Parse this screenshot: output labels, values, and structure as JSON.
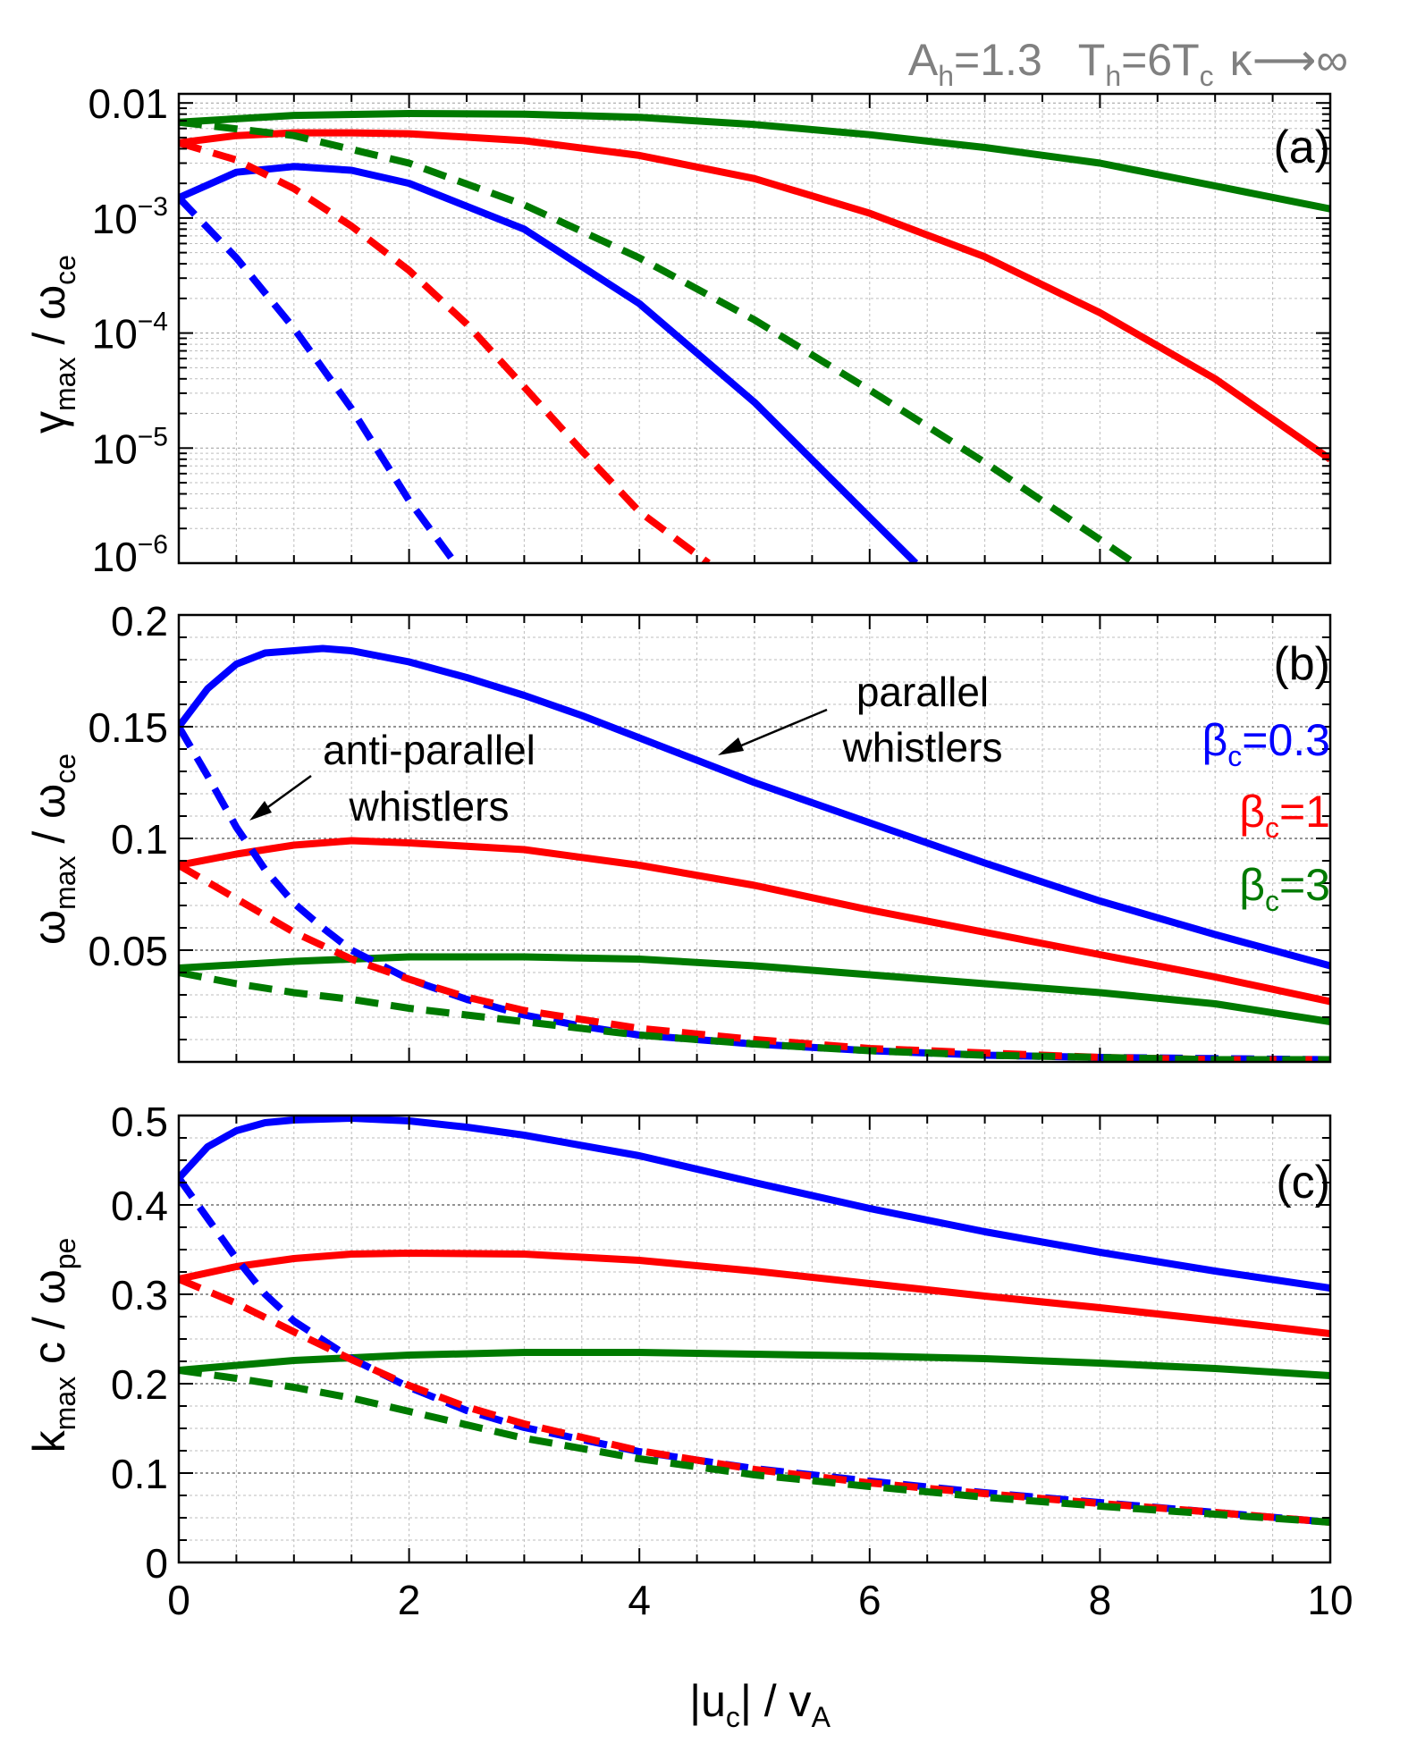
{
  "header": {
    "params": "A_h=1.3    T_h=6T_c  κ→∞",
    "ah": "A",
    "ah_sub": "h",
    "ah_val": "=1.3",
    "th": "T",
    "th_sub": "h",
    "th_mid": "=6T",
    "th_sub2": "c",
    "kappa": "κ⟶∞"
  },
  "colors": {
    "b03": "#0000ff",
    "b1": "#ff0000",
    "b3": "#007a00",
    "frame": "#000000",
    "grid": "#bdbdbd",
    "header": "#808080"
  },
  "chart_data": [
    {
      "panel": "(a)",
      "type": "line",
      "yscale": "log",
      "ylabel_main": "γ",
      "ylabel_sub": "max",
      "ylabel_rest": " / ω",
      "ylabel_sub2": "ce",
      "xlim": [
        0,
        10
      ],
      "ylim": [
        1e-06,
        0.012
      ],
      "yticks": [
        {
          "value": 0.01,
          "mantissa": "0.01",
          "exp": ""
        },
        {
          "value": 0.001,
          "mantissa": "10",
          "exp": "−3"
        },
        {
          "value": 0.0001,
          "mantissa": "10",
          "exp": "−4"
        },
        {
          "value": 1e-05,
          "mantissa": "10",
          "exp": "−5"
        },
        {
          "value": 1e-06,
          "mantissa": "10",
          "exp": "−6"
        }
      ],
      "series": [
        {
          "name": "β_c=0.3 parallel",
          "beta": "0.3",
          "style": "solid",
          "x": [
            0,
            0.5,
            1,
            1.5,
            2,
            3,
            4,
            5,
            6,
            6.4
          ],
          "y": [
            0.0015,
            0.0025,
            0.0028,
            0.0026,
            0.002,
            0.0008,
            0.00018,
            2.5e-05,
            2.5e-06,
            1e-06
          ]
        },
        {
          "name": "β_c=1 parallel",
          "beta": "1",
          "style": "solid",
          "x": [
            0,
            0.5,
            1,
            1.5,
            2,
            3,
            4,
            5,
            6,
            7,
            8,
            9,
            10
          ],
          "y": [
            0.0045,
            0.0052,
            0.0055,
            0.0055,
            0.0054,
            0.0047,
            0.0035,
            0.0022,
            0.0011,
            0.00046,
            0.00015,
            4e-05,
            8e-06
          ]
        },
        {
          "name": "β_c=3 parallel",
          "beta": "3",
          "style": "solid",
          "x": [
            0,
            1,
            2,
            3,
            4,
            5,
            6,
            7,
            8,
            9,
            10
          ],
          "y": [
            0.0068,
            0.0078,
            0.0081,
            0.008,
            0.0075,
            0.0065,
            0.0053,
            0.0041,
            0.003,
            0.0019,
            0.0012
          ]
        },
        {
          "name": "β_c=0.3 anti-parallel",
          "beta": "0.3",
          "style": "dashed",
          "x": [
            0,
            0.5,
            1,
            1.5,
            2,
            2.4
          ],
          "y": [
            0.0015,
            0.00045,
            0.00011,
            2.2e-05,
            3.5e-06,
            1e-06
          ]
        },
        {
          "name": "β_c=1 anti-parallel",
          "beta": "1",
          "style": "dashed",
          "x": [
            0,
            0.5,
            1,
            1.5,
            2,
            2.5,
            3,
            3.5,
            4,
            4.6
          ],
          "y": [
            0.0045,
            0.0032,
            0.0018,
            0.00085,
            0.00035,
            0.00012,
            3.4e-05,
            9.5e-06,
            2.8e-06,
            1e-06
          ]
        },
        {
          "name": "β_c=3 anti-parallel",
          "beta": "3",
          "style": "dashed",
          "x": [
            0,
            1,
            2,
            3,
            4,
            5,
            6,
            7,
            8,
            8.3
          ],
          "y": [
            0.0068,
            0.0052,
            0.003,
            0.0013,
            0.00045,
            0.00013,
            3.2e-05,
            7.5e-06,
            1.6e-06,
            1e-06
          ]
        }
      ]
    },
    {
      "panel": "(b)",
      "type": "line",
      "yscale": "linear",
      "ylabel_main": "ω",
      "ylabel_sub": "max",
      "ylabel_rest": " / ω",
      "ylabel_sub2": "ce",
      "xlim": [
        0,
        10
      ],
      "ylim": [
        0,
        0.2
      ],
      "yticks": [
        {
          "value": 0.2,
          "label": "0.2"
        },
        {
          "value": 0.15,
          "label": "0.15"
        },
        {
          "value": 0.1,
          "label": "0.1"
        },
        {
          "value": 0.05,
          "label": "0.05"
        }
      ],
      "annotations": {
        "parallel_line1": "parallel",
        "parallel_line2": "whistlers",
        "anti_line1": "anti-parallel",
        "anti_line2": "whistlers"
      },
      "legend": [
        {
          "main": "β",
          "sub": "c",
          "rest": "=0.3",
          "beta": "0.3"
        },
        {
          "main": "β",
          "sub": "c",
          "rest": "=1",
          "beta": "1"
        },
        {
          "main": "β",
          "sub": "c",
          "rest": "=3",
          "beta": "3"
        }
      ],
      "series": [
        {
          "name": "β_c=0.3 parallel",
          "beta": "0.3",
          "style": "solid",
          "x": [
            0,
            0.25,
            0.5,
            0.75,
            1,
            1.25,
            1.5,
            2,
            2.5,
            3,
            3.5,
            4,
            4.5,
            5,
            6,
            7,
            8,
            9,
            10
          ],
          "y": [
            0.15,
            0.167,
            0.178,
            0.183,
            0.184,
            0.185,
            0.184,
            0.179,
            0.172,
            0.164,
            0.155,
            0.145,
            0.135,
            0.125,
            0.107,
            0.089,
            0.072,
            0.057,
            0.043
          ]
        },
        {
          "name": "β_c=1 parallel",
          "beta": "1",
          "style": "solid",
          "x": [
            0,
            0.5,
            1,
            1.5,
            2,
            3,
            4,
            5,
            6,
            7,
            8,
            9,
            10
          ],
          "y": [
            0.088,
            0.093,
            0.097,
            0.099,
            0.098,
            0.095,
            0.088,
            0.079,
            0.068,
            0.058,
            0.048,
            0.038,
            0.027
          ]
        },
        {
          "name": "β_c=3 parallel",
          "beta": "3",
          "style": "solid",
          "x": [
            0,
            1,
            2,
            3,
            4,
            5,
            6,
            7,
            8,
            9,
            10
          ],
          "y": [
            0.042,
            0.045,
            0.047,
            0.047,
            0.046,
            0.043,
            0.039,
            0.035,
            0.031,
            0.026,
            0.018
          ]
        },
        {
          "name": "β_c=0.3 anti-parallel",
          "beta": "0.3",
          "style": "dashed",
          "x": [
            0,
            0.25,
            0.5,
            0.75,
            1,
            1.25,
            1.5,
            2,
            2.5,
            3,
            3.5,
            4,
            5,
            6,
            7,
            8,
            9,
            10
          ],
          "y": [
            0.15,
            0.128,
            0.105,
            0.086,
            0.071,
            0.06,
            0.05,
            0.037,
            0.028,
            0.021,
            0.016,
            0.012,
            0.008,
            0.005,
            0.003,
            0.002,
            0.0015,
            0.001
          ]
        },
        {
          "name": "β_c=1 anti-parallel",
          "beta": "1",
          "style": "dashed",
          "x": [
            0,
            0.5,
            1,
            1.5,
            2,
            2.5,
            3,
            4,
            5,
            6,
            7,
            8,
            9,
            10
          ],
          "y": [
            0.088,
            0.073,
            0.058,
            0.046,
            0.037,
            0.029,
            0.023,
            0.015,
            0.01,
            0.006,
            0.004,
            0.002,
            0.001,
            0.001
          ]
        },
        {
          "name": "β_c=3 anti-parallel",
          "beta": "3",
          "style": "dashed",
          "x": [
            0,
            0.5,
            1,
            1.5,
            2,
            3,
            4,
            5,
            6,
            7,
            8,
            9,
            10
          ],
          "y": [
            0.04,
            0.035,
            0.031,
            0.028,
            0.024,
            0.018,
            0.012,
            0.008,
            0.005,
            0.003,
            0.002,
            0.001,
            0.001
          ]
        }
      ]
    },
    {
      "panel": "(c)",
      "type": "line",
      "yscale": "linear",
      "ylabel_main": "k",
      "ylabel_sub": "max",
      "ylabel_rest": " c / ω",
      "ylabel_sub2": "pe",
      "xlabel": "|u_c| / v_A",
      "xlabel_pre": "|u",
      "xlabel_sub": "c",
      "xlabel_mid": "| / v",
      "xlabel_sub2": "A",
      "xlim": [
        0,
        10
      ],
      "ylim": [
        0,
        0.5
      ],
      "xticks": [
        "0",
        "2",
        "4",
        "6",
        "8",
        "10"
      ],
      "yticks": [
        {
          "value": 0.5,
          "label": "0.5"
        },
        {
          "value": 0.4,
          "label": "0.4"
        },
        {
          "value": 0.3,
          "label": "0.3"
        },
        {
          "value": 0.2,
          "label": "0.2"
        },
        {
          "value": 0.1,
          "label": "0.1"
        },
        {
          "value": 0,
          "label": "0"
        }
      ],
      "series": [
        {
          "name": "β_c=0.3 parallel",
          "beta": "0.3",
          "style": "solid",
          "x": [
            0,
            0.25,
            0.5,
            0.75,
            1,
            1.5,
            2,
            2.5,
            3,
            4,
            5,
            6,
            7,
            8,
            9,
            10
          ],
          "y": [
            0.43,
            0.465,
            0.483,
            0.492,
            0.495,
            0.497,
            0.494,
            0.487,
            0.478,
            0.455,
            0.425,
            0.396,
            0.37,
            0.347,
            0.326,
            0.307
          ]
        },
        {
          "name": "β_c=1 parallel",
          "beta": "1",
          "style": "solid",
          "x": [
            0,
            0.5,
            1,
            1.5,
            2,
            3,
            4,
            5,
            6,
            7,
            8,
            9,
            10
          ],
          "y": [
            0.317,
            0.331,
            0.34,
            0.345,
            0.346,
            0.345,
            0.338,
            0.326,
            0.312,
            0.298,
            0.285,
            0.271,
            0.256
          ]
        },
        {
          "name": "β_c=3 parallel",
          "beta": "3",
          "style": "solid",
          "x": [
            0,
            1,
            2,
            3,
            4,
            5,
            6,
            7,
            8,
            9,
            10
          ],
          "y": [
            0.215,
            0.226,
            0.232,
            0.235,
            0.235,
            0.233,
            0.231,
            0.228,
            0.223,
            0.217,
            0.209
          ]
        },
        {
          "name": "β_c=0.3 anti-parallel",
          "beta": "0.3",
          "style": "dashed",
          "x": [
            0,
            0.25,
            0.5,
            0.75,
            1,
            1.5,
            2,
            2.5,
            3,
            4,
            5,
            6,
            7,
            8,
            9,
            10
          ],
          "y": [
            0.43,
            0.385,
            0.34,
            0.3,
            0.27,
            0.228,
            0.196,
            0.17,
            0.151,
            0.124,
            0.105,
            0.091,
            0.078,
            0.067,
            0.056,
            0.045
          ]
        },
        {
          "name": "β_c=1 anti-parallel",
          "beta": "1",
          "style": "dashed",
          "x": [
            0,
            0.5,
            1,
            1.5,
            2,
            2.5,
            3,
            4,
            5,
            6,
            7,
            8,
            9,
            10
          ],
          "y": [
            0.317,
            0.29,
            0.258,
            0.227,
            0.198,
            0.174,
            0.155,
            0.125,
            0.104,
            0.089,
            0.077,
            0.066,
            0.056,
            0.045
          ]
        },
        {
          "name": "β_c=3 anti-parallel",
          "beta": "3",
          "style": "dashed",
          "x": [
            0,
            0.5,
            1,
            1.5,
            2,
            3,
            4,
            5,
            6,
            7,
            8,
            9,
            10
          ],
          "y": [
            0.215,
            0.206,
            0.196,
            0.184,
            0.169,
            0.139,
            0.116,
            0.098,
            0.085,
            0.073,
            0.063,
            0.054,
            0.045
          ]
        }
      ]
    }
  ]
}
